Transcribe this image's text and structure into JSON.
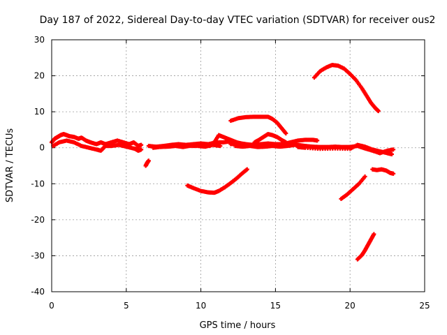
{
  "chart_data": {
    "type": "scatter",
    "title": "Day 187 of 2022, Sidereal Day-to-day VTEC variation (SDTVAR) for receiver ous2",
    "xlabel": "GPS time / hours",
    "ylabel": "SDTVAR / TECUs",
    "xlim": [
      0,
      25
    ],
    "ylim": [
      -40,
      30
    ],
    "xticks": [
      0,
      5,
      10,
      15,
      20,
      25
    ],
    "yticks": [
      -40,
      -30,
      -20,
      -10,
      0,
      10,
      20,
      30
    ],
    "grid": true,
    "marker_color": "#ff0000",
    "series": [
      {
        "name": "band-0-6",
        "points": [
          [
            0.0,
            1.5
          ],
          [
            0.2,
            2.5
          ],
          [
            0.4,
            3.0
          ],
          [
            0.6,
            3.5
          ],
          [
            0.8,
            3.8
          ],
          [
            1.0,
            3.5
          ],
          [
            1.2,
            3.2
          ],
          [
            1.5,
            3.0
          ],
          [
            1.8,
            2.5
          ],
          [
            2.0,
            2.8
          ],
          [
            2.3,
            2.0
          ],
          [
            2.6,
            1.5
          ],
          [
            3.0,
            1.0
          ],
          [
            3.3,
            1.5
          ],
          [
            3.6,
            1.0
          ],
          [
            4.0,
            1.5
          ],
          [
            4.4,
            2.0
          ],
          [
            4.8,
            1.5
          ],
          [
            5.2,
            1.0
          ],
          [
            5.5,
            1.5
          ],
          [
            5.8,
            0.5
          ],
          [
            6.0,
            0.8
          ]
        ]
      },
      {
        "name": "band-0-6-lower",
        "points": [
          [
            0.1,
            0.5
          ],
          [
            0.5,
            1.5
          ],
          [
            1.0,
            2.0
          ],
          [
            1.5,
            1.5
          ],
          [
            2.0,
            0.5
          ],
          [
            2.5,
            0.0
          ],
          [
            3.0,
            -0.5
          ],
          [
            3.3,
            -0.8
          ],
          [
            3.6,
            0.5
          ],
          [
            4.0,
            0.5
          ],
          [
            4.5,
            0.8
          ],
          [
            5.0,
            0.3
          ],
          [
            5.5,
            -0.2
          ],
          [
            5.8,
            -0.5
          ]
        ]
      },
      {
        "name": "dip-6",
        "points": [
          [
            5.6,
            -0.3
          ],
          [
            5.8,
            -0.8
          ],
          [
            6.0,
            -0.5
          ]
        ]
      },
      {
        "name": "isolated-6.4",
        "points": [
          [
            6.3,
            -5.0
          ],
          [
            6.4,
            -4.2
          ],
          [
            6.5,
            -3.6
          ]
        ]
      },
      {
        "name": "band-6-12",
        "points": [
          [
            6.5,
            0.5
          ],
          [
            7.0,
            0.3
          ],
          [
            7.5,
            0.5
          ],
          [
            8.0,
            0.8
          ],
          [
            8.5,
            1.0
          ],
          [
            9.0,
            0.8
          ],
          [
            9.5,
            1.0
          ],
          [
            10.0,
            1.2
          ],
          [
            10.5,
            1.0
          ],
          [
            11.0,
            1.5
          ],
          [
            11.5,
            1.5
          ],
          [
            12.0,
            1.8
          ]
        ]
      },
      {
        "name": "band-6-12-lower",
        "points": [
          [
            6.8,
            0.0
          ],
          [
            7.2,
            0.2
          ],
          [
            7.8,
            0.3
          ],
          [
            8.3,
            0.5
          ],
          [
            8.8,
            0.2
          ],
          [
            9.2,
            0.5
          ],
          [
            9.8,
            0.5
          ],
          [
            10.3,
            0.3
          ],
          [
            10.8,
            0.8
          ],
          [
            11.3,
            0.5
          ]
        ]
      },
      {
        "name": "bump-11-13",
        "points": [
          [
            10.6,
            0.5
          ],
          [
            10.9,
            1.5
          ],
          [
            11.2,
            3.5
          ],
          [
            11.5,
            3.0
          ],
          [
            11.8,
            2.5
          ],
          [
            12.1,
            2.0
          ],
          [
            12.4,
            1.5
          ],
          [
            12.7,
            1.2
          ],
          [
            13.0,
            1.0
          ]
        ]
      },
      {
        "name": "plateau-12-15.7",
        "points": [
          [
            12.0,
            7.5
          ],
          [
            12.5,
            8.2
          ],
          [
            13.0,
            8.5
          ],
          [
            13.5,
            8.6
          ],
          [
            14.0,
            8.6
          ],
          [
            14.5,
            8.6
          ],
          [
            14.8,
            8.0
          ],
          [
            15.1,
            7.0
          ],
          [
            15.4,
            5.5
          ],
          [
            15.7,
            4.0
          ]
        ]
      },
      {
        "name": "arc-14-15.5",
        "points": [
          [
            13.6,
            1.5
          ],
          [
            13.9,
            2.2
          ],
          [
            14.2,
            3.0
          ],
          [
            14.5,
            3.8
          ],
          [
            14.8,
            3.5
          ],
          [
            15.1,
            3.0
          ],
          [
            15.4,
            2.2
          ],
          [
            15.7,
            1.5
          ]
        ]
      },
      {
        "name": "band-12-18",
        "points": [
          [
            12.0,
            1.0
          ],
          [
            12.5,
            1.2
          ],
          [
            13.0,
            1.0
          ],
          [
            13.5,
            0.8
          ],
          [
            14.0,
            1.0
          ],
          [
            14.5,
            1.2
          ],
          [
            15.0,
            1.0
          ],
          [
            15.5,
            1.0
          ],
          [
            16.0,
            1.5
          ],
          [
            16.5,
            2.0
          ],
          [
            17.0,
            2.2
          ],
          [
            17.5,
            2.2
          ],
          [
            17.8,
            2.0
          ]
        ]
      },
      {
        "name": "band-12-18-lower",
        "points": [
          [
            12.3,
            0.5
          ],
          [
            12.8,
            0.3
          ],
          [
            13.3,
            0.5
          ],
          [
            13.8,
            0.2
          ],
          [
            14.3,
            0.3
          ],
          [
            14.8,
            0.5
          ],
          [
            15.3,
            0.3
          ],
          [
            15.8,
            0.5
          ],
          [
            16.3,
            0.8
          ],
          [
            16.8,
            0.5
          ]
        ]
      },
      {
        "name": "band-16-23",
        "points": [
          [
            16.0,
            1.0
          ],
          [
            16.5,
            0.8
          ],
          [
            17.0,
            0.5
          ],
          [
            17.5,
            0.3
          ],
          [
            18.0,
            0.2
          ],
          [
            18.5,
            0.2
          ],
          [
            19.0,
            0.3
          ],
          [
            19.5,
            0.2
          ],
          [
            20.0,
            0.2
          ],
          [
            20.5,
            0.5
          ],
          [
            21.0,
            -0.2
          ],
          [
            21.5,
            -0.8
          ],
          [
            22.0,
            -1.5
          ],
          [
            22.5,
            -0.8
          ],
          [
            22.9,
            -0.5
          ]
        ]
      },
      {
        "name": "band-16-23-lower",
        "points": [
          [
            16.5,
            0.2
          ],
          [
            17.0,
            0.0
          ],
          [
            18.0,
            -0.3
          ],
          [
            19.0,
            -0.2
          ],
          [
            20.0,
            -0.3
          ],
          [
            20.5,
            0.8
          ],
          [
            21.0,
            0.3
          ],
          [
            21.5,
            -0.5
          ],
          [
            22.0,
            -1.0
          ],
          [
            22.5,
            -1.5
          ],
          [
            22.8,
            -1.8
          ]
        ]
      },
      {
        "name": "u-9-13",
        "points": [
          [
            9.1,
            -10.5
          ],
          [
            9.5,
            -11.2
          ],
          [
            10.0,
            -12.0
          ],
          [
            10.5,
            -12.4
          ],
          [
            10.9,
            -12.5
          ],
          [
            11.2,
            -12.0
          ],
          [
            11.6,
            -11.0
          ],
          [
            12.0,
            -9.8
          ],
          [
            12.4,
            -8.5
          ],
          [
            12.8,
            -7.0
          ],
          [
            13.1,
            -6.0
          ]
        ]
      },
      {
        "name": "peak-17.6-21.9",
        "points": [
          [
            17.6,
            19.5
          ],
          [
            18.0,
            21.3
          ],
          [
            18.4,
            22.3
          ],
          [
            18.8,
            23.0
          ],
          [
            19.2,
            22.8
          ],
          [
            19.6,
            22.0
          ],
          [
            20.0,
            20.5
          ],
          [
            20.4,
            18.8
          ],
          [
            20.8,
            16.5
          ],
          [
            21.1,
            14.5
          ],
          [
            21.4,
            12.5
          ],
          [
            21.7,
            11.0
          ],
          [
            21.9,
            10.2
          ]
        ]
      },
      {
        "name": "rise-19.4-21",
        "points": [
          [
            19.4,
            -14.2
          ],
          [
            19.8,
            -13.0
          ],
          [
            20.2,
            -11.5
          ],
          [
            20.6,
            -10.0
          ],
          [
            21.0,
            -8.0
          ]
        ]
      },
      {
        "name": "rise-20.5-21.6",
        "points": [
          [
            20.5,
            -31.0
          ],
          [
            20.8,
            -29.8
          ],
          [
            21.0,
            -28.5
          ],
          [
            21.2,
            -27.0
          ],
          [
            21.4,
            -25.5
          ],
          [
            21.6,
            -24.0
          ]
        ]
      },
      {
        "name": "flat-21.5-23",
        "points": [
          [
            21.5,
            -6.0
          ],
          [
            21.8,
            -6.2
          ],
          [
            22.1,
            -6.0
          ],
          [
            22.4,
            -6.3
          ],
          [
            22.7,
            -7.0
          ],
          [
            22.9,
            -7.2
          ]
        ]
      }
    ]
  }
}
